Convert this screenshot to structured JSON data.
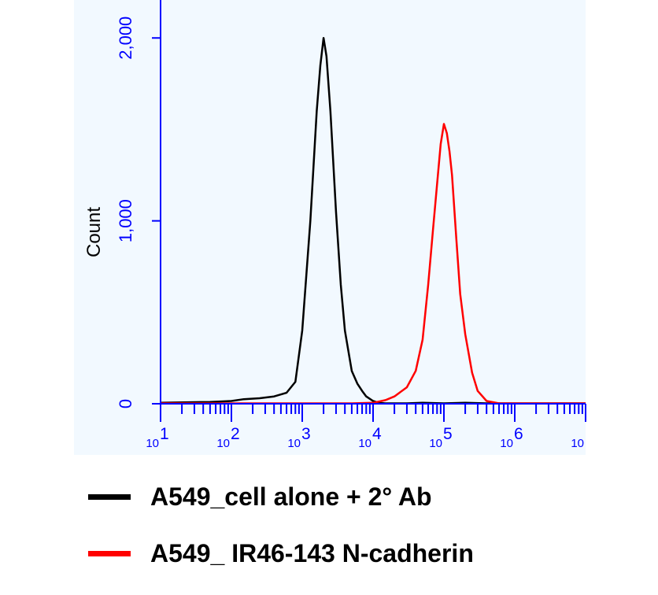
{
  "chart_data": {
    "type": "line",
    "xscale": "log",
    "xlim": [
      10,
      10000000
    ],
    "ylim": [
      0,
      2100
    ],
    "ylabel": "Count",
    "xticks": [
      {
        "value": 10,
        "base": "10",
        "exp": "1"
      },
      {
        "value": 100,
        "base": "10",
        "exp": "2"
      },
      {
        "value": 1000,
        "base": "10",
        "exp": "3"
      },
      {
        "value": 10000,
        "base": "10",
        "exp": "4"
      },
      {
        "value": 100000,
        "base": "10",
        "exp": "5"
      },
      {
        "value": 1000000,
        "base": "10",
        "exp": "6"
      },
      {
        "value": 10000000,
        "base": "10",
        "exp": ""
      }
    ],
    "yticks": [
      {
        "value": 0,
        "label": "0"
      },
      {
        "value": 1000,
        "label": "1,000"
      },
      {
        "value": 2000,
        "label": "2,000"
      }
    ],
    "grid": false,
    "legend_position": "bottom",
    "series": [
      {
        "name": "A549_cell alone + 2° Ab",
        "color": "#000000",
        "x": [
          10,
          50,
          100,
          150,
          250,
          400,
          600,
          800,
          1000,
          1300,
          1600,
          1800,
          2000,
          2200,
          2500,
          3000,
          3500,
          4000,
          5000,
          6000,
          7000,
          8000,
          10000,
          12000,
          15000,
          20000,
          30000,
          50000,
          100000,
          200000,
          400000,
          1000000,
          10000000
        ],
        "y": [
          5,
          10,
          15,
          25,
          30,
          40,
          60,
          120,
          400,
          1000,
          1600,
          1850,
          2000,
          1900,
          1600,
          1050,
          650,
          400,
          180,
          110,
          70,
          40,
          15,
          5,
          2,
          2,
          2,
          5,
          2,
          5,
          2,
          2,
          2
        ]
      },
      {
        "name": "A549_ IR46-143 N-cadherin",
        "color": "#ff0000",
        "x": [
          10,
          1000,
          5000,
          10000,
          15000,
          20000,
          30000,
          40000,
          50000,
          60000,
          70000,
          80000,
          90000,
          100000,
          110000,
          120000,
          130000,
          150000,
          170000,
          200000,
          250000,
          300000,
          400000,
          600000,
          1000000,
          10000000
        ],
        "y": [
          2,
          2,
          2,
          5,
          20,
          40,
          90,
          180,
          350,
          650,
          950,
          1200,
          1420,
          1530,
          1480,
          1380,
          1250,
          900,
          600,
          380,
          170,
          70,
          15,
          2,
          2,
          2
        ]
      }
    ]
  }
}
